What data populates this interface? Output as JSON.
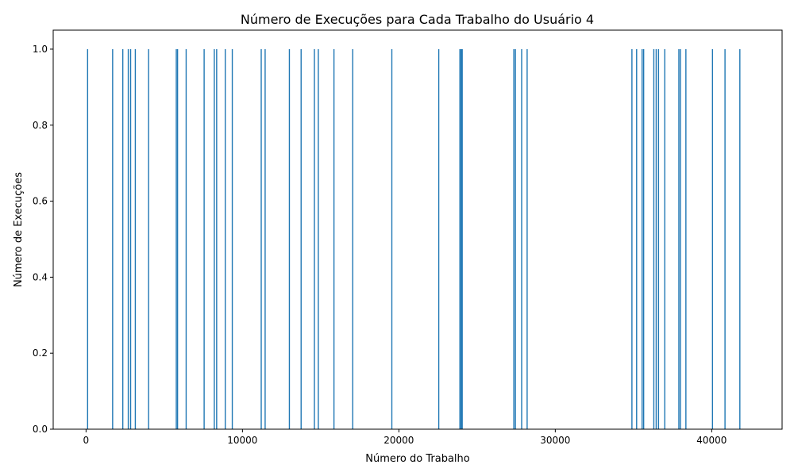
{
  "chart_data": {
    "type": "bar",
    "title": "Número de Execuções para Cada Trabalho do Usuário 4",
    "xlabel": "Número do Trabalho",
    "ylabel": "Número de Execuções",
    "xlim": [
      -2100,
      44500
    ],
    "ylim": [
      0,
      1.05
    ],
    "xticks": [
      0,
      10000,
      20000,
      30000,
      40000
    ],
    "yticks": [
      0.0,
      0.2,
      0.4,
      0.6,
      0.8,
      1.0
    ],
    "xtick_labels": [
      "0",
      "10000",
      "20000",
      "30000",
      "40000"
    ],
    "ytick_labels": [
      "0.0",
      "0.2",
      "0.4",
      "0.6",
      "0.8",
      "1.0"
    ],
    "bar_color": "#1f77b4",
    "grid": false,
    "x": [
      100,
      1700,
      2350,
      2700,
      2850,
      3150,
      4000,
      5770,
      5850,
      6400,
      7550,
      8200,
      8350,
      8900,
      9350,
      11200,
      11450,
      13000,
      13750,
      14600,
      14850,
      15850,
      17050,
      19550,
      22550,
      23900,
      23980,
      24050,
      27350,
      27450,
      27850,
      28200,
      34900,
      35200,
      35550,
      35650,
      36300,
      36450,
      36600,
      37000,
      37900,
      38000,
      38350,
      40050,
      40850,
      41800
    ],
    "values": [
      1,
      1,
      1,
      1,
      1,
      1,
      1,
      1,
      1,
      1,
      1,
      1,
      1,
      1,
      1,
      1,
      1,
      1,
      1,
      1,
      1,
      1,
      1,
      1,
      1,
      1,
      1,
      1,
      1,
      1,
      1,
      1,
      1,
      1,
      1,
      1,
      1,
      1,
      1,
      1,
      1,
      1,
      1,
      1,
      1,
      1
    ]
  }
}
